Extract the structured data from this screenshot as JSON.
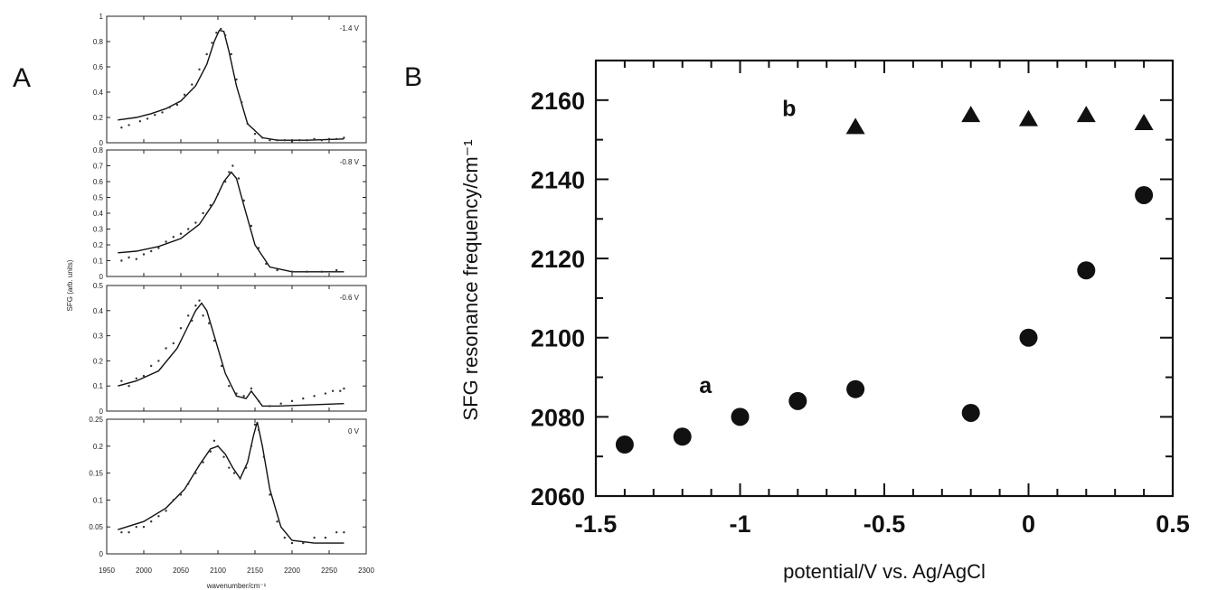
{
  "panel_labels": {
    "a": "A",
    "b": "B"
  },
  "chart_data": [
    {
      "type": "line",
      "panel": "A",
      "xlabel": "wavenumber/cm⁻¹",
      "ylabel": "SFG (arb. units)",
      "xlim": [
        1950,
        2300
      ],
      "xticks": [
        1950,
        2000,
        2050,
        2100,
        2150,
        2200,
        2250,
        2300
      ],
      "subplots": [
        {
          "label": "-1.4 V",
          "ylim": [
            0,
            1
          ],
          "yticks": [
            0,
            0.2,
            0.4,
            0.6,
            0.8,
            1
          ],
          "fit": {
            "x": [
              1965,
              1990,
              2010,
              2030,
              2050,
              2070,
              2085,
              2095,
              2102,
              2108,
              2115,
              2125,
              2140,
              2160,
              2180,
              2220,
              2270
            ],
            "y": [
              0.18,
              0.2,
              0.23,
              0.27,
              0.33,
              0.45,
              0.62,
              0.8,
              0.89,
              0.88,
              0.72,
              0.45,
              0.15,
              0.04,
              0.02,
              0.02,
              0.03
            ]
          },
          "points": {
            "x": [
              1970,
              1980,
              1995,
              2005,
              2015,
              2025,
              2035,
              2045,
              2055,
              2065,
              2075,
              2085,
              2092,
              2098,
              2104,
              2110,
              2118,
              2125,
              2132,
              2140,
              2150,
              2160,
              2170,
              2180,
              2190,
              2200,
              2210,
              2220,
              2230,
              2240,
              2250,
              2260,
              2270
            ],
            "y": [
              0.12,
              0.14,
              0.17,
              0.19,
              0.22,
              0.24,
              0.28,
              0.3,
              0.38,
              0.46,
              0.58,
              0.7,
              0.79,
              0.87,
              0.9,
              0.85,
              0.7,
              0.5,
              0.32,
              0.15,
              0.07,
              0.04,
              0.02,
              0.02,
              0.02,
              0.01,
              0.02,
              0.02,
              0.03,
              0.02,
              0.03,
              0.03,
              0.04
            ]
          }
        },
        {
          "label": "-0.8 V",
          "ylim": [
            0,
            0.8
          ],
          "yticks": [
            0,
            0.1,
            0.2,
            0.3,
            0.4,
            0.5,
            0.6,
            0.7,
            0.8
          ],
          "fit": {
            "x": [
              1965,
              1990,
              2020,
              2050,
              2075,
              2095,
              2108,
              2118,
              2125,
              2135,
              2150,
              2170,
              2200,
              2270
            ],
            "y": [
              0.15,
              0.16,
              0.19,
              0.24,
              0.33,
              0.47,
              0.6,
              0.66,
              0.62,
              0.45,
              0.2,
              0.06,
              0.03,
              0.03
            ]
          },
          "points": {
            "x": [
              1970,
              1980,
              1990,
              2000,
              2010,
              2020,
              2030,
              2040,
              2050,
              2060,
              2070,
              2080,
              2090,
              2100,
              2110,
              2115,
              2120,
              2128,
              2135,
              2145,
              2155,
              2165,
              2180,
              2200,
              2220,
              2240,
              2260
            ],
            "y": [
              0.1,
              0.12,
              0.11,
              0.14,
              0.16,
              0.18,
              0.22,
              0.25,
              0.27,
              0.3,
              0.34,
              0.4,
              0.45,
              0.52,
              0.6,
              0.66,
              0.7,
              0.62,
              0.48,
              0.32,
              0.18,
              0.08,
              0.04,
              0.03,
              0.03,
              0.03,
              0.04
            ]
          }
        },
        {
          "label": "-0.6 V",
          "ylim": [
            0,
            0.5
          ],
          "yticks": [
            0,
            0.1,
            0.2,
            0.3,
            0.4,
            0.5
          ],
          "fit": {
            "x": [
              1965,
              1990,
              2020,
              2045,
              2060,
              2070,
              2078,
              2085,
              2095,
              2110,
              2125,
              2138,
              2145,
              2150,
              2160,
              2180,
              2270
            ],
            "y": [
              0.1,
              0.12,
              0.16,
              0.25,
              0.34,
              0.4,
              0.43,
              0.4,
              0.3,
              0.15,
              0.06,
              0.05,
              0.08,
              0.06,
              0.02,
              0.02,
              0.03
            ]
          },
          "points": {
            "x": [
              1970,
              1980,
              1990,
              2000,
              2010,
              2020,
              2030,
              2040,
              2050,
              2060,
              2065,
              2070,
              2075,
              2080,
              2088,
              2095,
              2105,
              2115,
              2125,
              2135,
              2145,
              2155,
              2170,
              2185,
              2200,
              2215,
              2230,
              2245,
              2255,
              2265,
              2270
            ],
            "y": [
              0.12,
              0.1,
              0.13,
              0.14,
              0.18,
              0.2,
              0.25,
              0.27,
              0.33,
              0.38,
              0.36,
              0.42,
              0.44,
              0.38,
              0.35,
              0.28,
              0.18,
              0.1,
              0.07,
              0.06,
              0.09,
              0.04,
              0.02,
              0.03,
              0.04,
              0.05,
              0.06,
              0.07,
              0.08,
              0.08,
              0.09
            ]
          }
        },
        {
          "label": "0 V",
          "ylim": [
            0,
            0.25
          ],
          "yticks": [
            0,
            0.05,
            0.1,
            0.15,
            0.2,
            0.25
          ],
          "fit": {
            "x": [
              1965,
              2000,
              2030,
              2055,
              2075,
              2090,
              2100,
              2110,
              2120,
              2130,
              2140,
              2148,
              2153,
              2160,
              2170,
              2185,
              2200,
              2230,
              2270
            ],
            "y": [
              0.045,
              0.06,
              0.085,
              0.12,
              0.165,
              0.195,
              0.2,
              0.185,
              0.16,
              0.14,
              0.17,
              0.22,
              0.245,
              0.2,
              0.12,
              0.05,
              0.025,
              0.02,
              0.02
            ]
          },
          "points": {
            "x": [
              1970,
              1980,
              1990,
              2000,
              2010,
              2020,
              2030,
              2040,
              2050,
              2060,
              2070,
              2080,
              2090,
              2095,
              2100,
              2108,
              2115,
              2122,
              2130,
              2138,
              2145,
              2150,
              2155,
              2162,
              2170,
              2180,
              2190,
              2200,
              2215,
              2230,
              2245,
              2260,
              2270
            ],
            "y": [
              0.04,
              0.04,
              0.05,
              0.05,
              0.06,
              0.07,
              0.08,
              0.1,
              0.11,
              0.13,
              0.15,
              0.17,
              0.19,
              0.21,
              0.2,
              0.18,
              0.16,
              0.15,
              0.14,
              0.16,
              0.2,
              0.24,
              0.23,
              0.18,
              0.11,
              0.06,
              0.03,
              0.02,
              0.02,
              0.03,
              0.03,
              0.04,
              0.04
            ]
          }
        }
      ]
    },
    {
      "type": "scatter",
      "panel": "B",
      "xlabel": "potential/V vs. Ag/AgCl",
      "ylabel": "SFG resonance frequency/cm⁻¹",
      "xlim": [
        -1.5,
        0.5
      ],
      "ylim": [
        2060,
        2170
      ],
      "xticks": [
        -1.5,
        -1,
        -0.5,
        0,
        0.5
      ],
      "xtick_labels": [
        "-1.5",
        "-1",
        "-0.5",
        "0",
        "0.5"
      ],
      "yticks": [
        2060,
        2080,
        2100,
        2120,
        2140,
        2160
      ],
      "yticks_labels": [
        "2060",
        "2080",
        "2100",
        "2120",
        "2140",
        "2160"
      ],
      "series": [
        {
          "name": "a",
          "marker": "circle",
          "x": [
            -1.4,
            -1.2,
            -1.0,
            -0.8,
            -0.6,
            -0.2,
            0.0,
            0.2,
            0.4
          ],
          "y": [
            2073,
            2075,
            2080,
            2084,
            2087,
            2081,
            2100,
            2117,
            2136
          ]
        },
        {
          "name": "b",
          "marker": "triangle",
          "x": [
            -0.6,
            -0.2,
            0.0,
            0.2,
            0.4
          ],
          "y": [
            2153,
            2156,
            2155,
            2156,
            2154
          ]
        }
      ]
    }
  ]
}
